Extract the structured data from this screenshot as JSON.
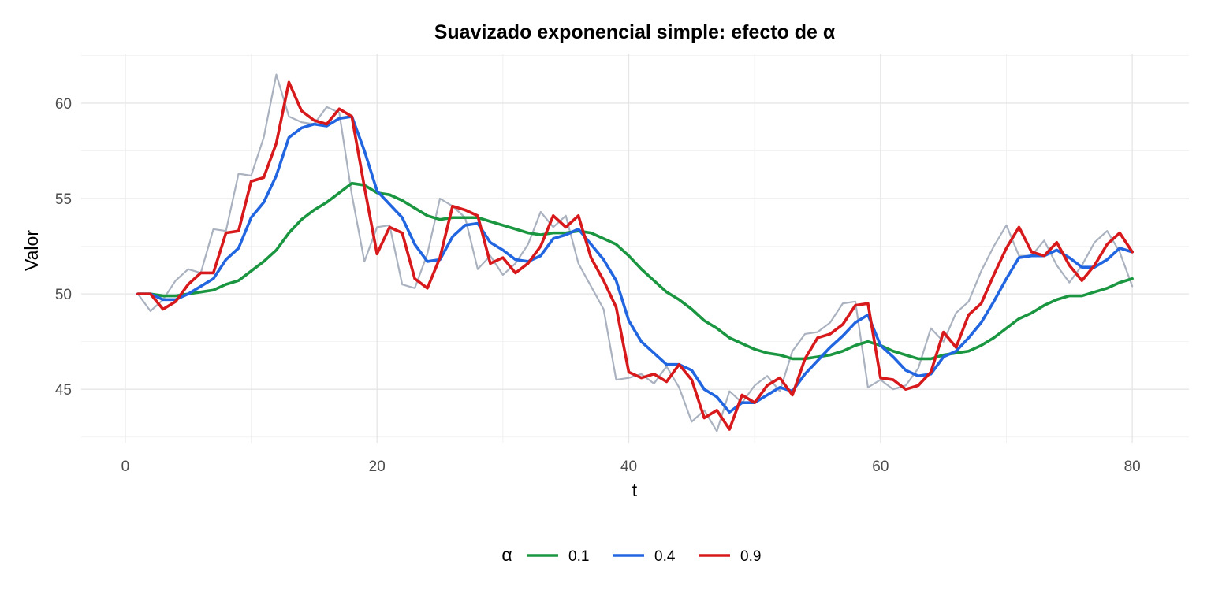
{
  "chart_data": {
    "type": "line",
    "title": "Suavizado exponencial simple: efecto de α",
    "xlabel": "t",
    "ylabel": "Valor",
    "xlim": [
      -3.5,
      84.5
    ],
    "ylim": [
      42.2,
      62.6
    ],
    "xticks": [
      0,
      20,
      40,
      60,
      80
    ],
    "xtick_labels": [
      "0",
      "20",
      "40",
      "60",
      "80"
    ],
    "yticks": [
      45,
      50,
      55,
      60
    ],
    "ytick_labels": [
      "45",
      "50",
      "55",
      "60"
    ],
    "grid": true,
    "legend": {
      "title": "α",
      "position": "bottom",
      "entries": [
        {
          "label": "0.1",
          "color": "#1a9641"
        },
        {
          "label": "0.4",
          "color": "#2166e0"
        },
        {
          "label": "0.9",
          "color": "#d7191c"
        }
      ]
    },
    "x": [
      1,
      2,
      3,
      4,
      5,
      6,
      7,
      8,
      9,
      10,
      11,
      12,
      13,
      14,
      15,
      16,
      17,
      18,
      19,
      20,
      21,
      22,
      23,
      24,
      25,
      26,
      27,
      28,
      29,
      30,
      31,
      32,
      33,
      34,
      35,
      36,
      37,
      38,
      39,
      40,
      41,
      42,
      43,
      44,
      45,
      46,
      47,
      48,
      49,
      50,
      51,
      52,
      53,
      54,
      55,
      56,
      57,
      58,
      59,
      60,
      61,
      62,
      63,
      64,
      65,
      66,
      67,
      68,
      69,
      70,
      71,
      72,
      73,
      74,
      75,
      76,
      77,
      78,
      79,
      80
    ],
    "series": [
      {
        "role": "observed",
        "color": "#aab2c0",
        "values": [
          50.0,
          49.1,
          49.7,
          50.7,
          51.3,
          51.1,
          53.4,
          53.3,
          56.3,
          56.2,
          58.2,
          61.5,
          59.3,
          59.0,
          58.9,
          59.8,
          59.5,
          55.2,
          51.7,
          53.5,
          53.6,
          50.5,
          50.3,
          52.1,
          55.0,
          54.6,
          54.0,
          51.3,
          52.0,
          51.0,
          51.6,
          52.6,
          54.3,
          53.5,
          54.1,
          51.6,
          50.4,
          49.2,
          45.5,
          45.6,
          45.8,
          45.3,
          46.2,
          45.1,
          43.3,
          43.9,
          42.8,
          44.9,
          44.3,
          45.2,
          45.7,
          44.9,
          47.0,
          47.9,
          48.0,
          48.5,
          49.5,
          49.6,
          45.1,
          45.5,
          45.0,
          45.2,
          46.1,
          48.2,
          47.5,
          49.0,
          49.6,
          51.2,
          52.5,
          53.6,
          52.0,
          52.0,
          52.8,
          51.5,
          50.6,
          51.5,
          52.7,
          53.3,
          52.2,
          50.4
        ]
      },
      {
        "name": "0.1",
        "color": "#1a9641",
        "values": [
          50.0,
          50.0,
          49.9,
          49.9,
          50.0,
          50.1,
          50.2,
          50.5,
          50.7,
          51.2,
          51.7,
          52.3,
          53.2,
          53.9,
          54.4,
          54.8,
          55.3,
          55.8,
          55.7,
          55.3,
          55.2,
          54.9,
          54.5,
          54.1,
          53.9,
          54.0,
          54.0,
          54.0,
          53.8,
          53.6,
          53.4,
          53.2,
          53.1,
          53.2,
          53.2,
          53.3,
          53.2,
          52.9,
          52.6,
          52.0,
          51.3,
          50.7,
          50.1,
          49.7,
          49.2,
          48.6,
          48.2,
          47.7,
          47.4,
          47.1,
          46.9,
          46.8,
          46.6,
          46.6,
          46.7,
          46.8,
          47.0,
          47.3,
          47.5,
          47.3,
          47.0,
          46.8,
          46.6,
          46.6,
          46.8,
          46.9,
          47.0,
          47.3,
          47.7,
          48.2,
          48.7,
          49.0,
          49.4,
          49.7,
          49.9,
          49.9,
          50.1,
          50.3,
          50.6,
          50.8
        ]
      },
      {
        "name": "0.4",
        "color": "#2166e0",
        "values": [
          50.0,
          50.0,
          49.7,
          49.7,
          50.0,
          50.4,
          50.8,
          51.8,
          52.4,
          54.0,
          54.8,
          56.2,
          58.2,
          58.7,
          58.9,
          58.8,
          59.2,
          59.3,
          57.5,
          55.4,
          54.7,
          54.0,
          52.6,
          51.7,
          51.8,
          53.0,
          53.6,
          53.7,
          52.7,
          52.3,
          51.8,
          51.7,
          52.0,
          52.9,
          53.1,
          53.4,
          52.6,
          51.8,
          50.7,
          48.6,
          47.5,
          46.9,
          46.3,
          46.3,
          46.0,
          45.0,
          44.6,
          43.8,
          44.3,
          44.3,
          44.7,
          45.1,
          44.9,
          45.8,
          46.5,
          47.2,
          47.8,
          48.5,
          48.9,
          47.3,
          46.7,
          46.0,
          45.7,
          45.8,
          46.7,
          47.0,
          47.7,
          48.5,
          49.6,
          50.8,
          51.9,
          52.0,
          52.0,
          52.3,
          51.9,
          51.4,
          51.4,
          51.8,
          52.4,
          52.2
        ]
      },
      {
        "name": "0.9",
        "color": "#d7191c",
        "values": [
          50.0,
          50.0,
          49.2,
          49.6,
          50.5,
          51.1,
          51.1,
          53.2,
          53.3,
          55.9,
          56.1,
          57.9,
          61.1,
          59.6,
          59.1,
          58.9,
          59.7,
          59.3,
          55.6,
          52.1,
          53.5,
          53.2,
          50.8,
          50.3,
          51.9,
          54.6,
          54.4,
          54.1,
          51.6,
          51.9,
          51.1,
          51.6,
          52.5,
          54.1,
          53.5,
          54.1,
          51.9,
          50.7,
          49.3,
          45.9,
          45.6,
          45.8,
          45.4,
          46.3,
          45.5,
          43.5,
          43.9,
          42.9,
          44.7,
          44.3,
          45.2,
          45.6,
          44.7,
          46.6,
          47.7,
          47.9,
          48.4,
          49.4,
          49.5,
          45.6,
          45.5,
          45.0,
          45.2,
          45.9,
          48.0,
          47.2,
          48.9,
          49.5,
          51.0,
          52.4,
          53.5,
          52.2,
          52.0,
          52.7,
          51.5,
          50.7,
          51.5,
          52.6,
          53.2,
          52.2
        ]
      }
    ]
  }
}
